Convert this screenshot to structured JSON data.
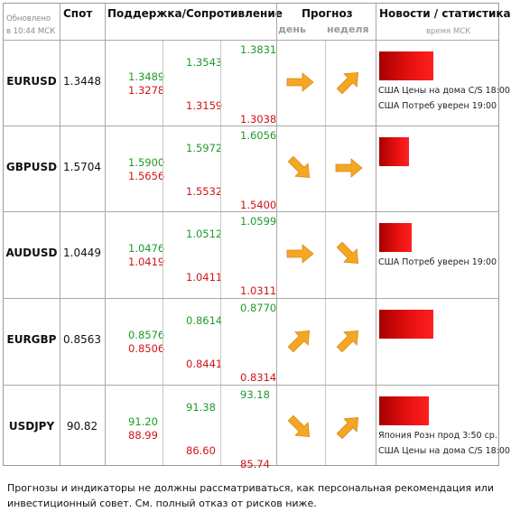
{
  "header": {
    "updated": "Обновлено",
    "updated_time": "в 10:44 МСК",
    "spot": "Спот",
    "support_resistance": "Поддержка/Сопротивление",
    "forecast": "Прогноз",
    "forecast_day": "день",
    "forecast_week": "неделя",
    "news": "Новости / статистика",
    "news_time": "время МСК"
  },
  "colors": {
    "support": "#1f9a2a",
    "resistance": "#d01414",
    "arrow": "#f5a623",
    "bar": "#e51010"
  },
  "rows": [
    {
      "symbol": "EURUSD",
      "spot": "1.3448",
      "levels": {
        "r3": "1.3831",
        "r2": "1.3543",
        "r1": "1.3489",
        "s1": "1.3278",
        "s2": "1.3159",
        "s3": "1.3038"
      },
      "forecast_day": "right",
      "forecast_week": "up-right",
      "news_bar": 0.46,
      "news": [
        "США Цены на дома C/S 18:00",
        "США Потреб уверен 19:00"
      ]
    },
    {
      "symbol": "GBPUSD",
      "spot": "1.5704",
      "levels": {
        "r3": "1.6056",
        "r2": "1.5972",
        "r1": "1.5900",
        "s1": "1.5656",
        "s2": "1.5532",
        "s3": "1.5400"
      },
      "forecast_day": "down-right",
      "forecast_week": "right",
      "news_bar": 0.25,
      "news": []
    },
    {
      "symbol": "AUDUSD",
      "spot": "1.0449",
      "levels": {
        "r3": "1.0599",
        "r2": "1.0512",
        "r1": "1.0476",
        "s1": "1.0419",
        "s2": "1.0411",
        "s3": "1.0311"
      },
      "forecast_day": "right",
      "forecast_week": "down-right",
      "news_bar": 0.28,
      "news": [
        "США Потреб уверен 19:00"
      ]
    },
    {
      "symbol": "EURGBP",
      "spot": "0.8563",
      "levels": {
        "r3": "0.8770",
        "r2": "0.8614",
        "r1": "0.8576",
        "s1": "0.8506",
        "s2": "0.8441",
        "s3": "0.8314"
      },
      "forecast_day": "up-right",
      "forecast_week": "up-right",
      "news_bar": 0.46,
      "news": []
    },
    {
      "symbol": "USDJPY",
      "spot": "90.82",
      "levels": {
        "r3": "93.18",
        "r2": "91.38",
        "r1": "91.20",
        "s1": "88.99",
        "s2": "86.60",
        "s3": "85.74"
      },
      "forecast_day": "down-right",
      "forecast_week": "up-right",
      "news_bar": 0.42,
      "news": [
        "Япония Розн прод 3:50 ср.",
        "США Цены на дома C/S 18:00"
      ]
    }
  ],
  "disclaimer": "Прогнозы и индикаторы не должны рассматриваться, как персональная рекомендация или инвестиционный совет. См. полный отказ от рисков ниже."
}
